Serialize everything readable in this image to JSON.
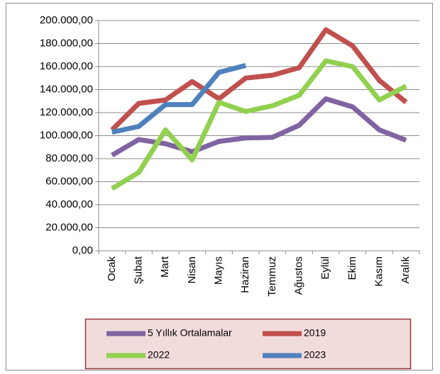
{
  "chart_data": {
    "type": "line",
    "categories": [
      "Ocak",
      "Şubat",
      "Mart",
      "Nisan",
      "Mayıs",
      "Haziran",
      "Temmuz",
      "Ağustos",
      "Eylül",
      "Ekim",
      "Kasım",
      "Aralık"
    ],
    "series": [
      {
        "name": "5 Yıllık Ortalamalar",
        "color": "#8064a2",
        "values": [
          83000,
          96600,
          93000,
          86000,
          95000,
          98000,
          98500,
          109000,
          132000,
          125000,
          105000,
          96000
        ]
      },
      {
        "name": "2019",
        "color": "#c0504d",
        "values": [
          105000,
          128000,
          131000,
          147000,
          132000,
          150000,
          152500,
          159000,
          192000,
          178000,
          148000,
          129000
        ]
      },
      {
        "name": "2022",
        "color": "#92d050",
        "values": [
          54000,
          68000,
          105000,
          79000,
          129000,
          121000,
          126000,
          135000,
          165000,
          160000,
          131000,
          143000
        ]
      },
      {
        "name": "2023",
        "color": "#4f81bd",
        "values": [
          103000,
          108000,
          127000,
          127000,
          155000,
          161000,
          null,
          null,
          null,
          null,
          null,
          null
        ]
      }
    ],
    "ylim": [
      0,
      200000
    ],
    "yticks": [
      {
        "value": 0,
        "label": "0,00"
      },
      {
        "value": 20000,
        "label": "20.000,00"
      },
      {
        "value": 40000,
        "label": "40.000,00"
      },
      {
        "value": 60000,
        "label": "60.000,00"
      },
      {
        "value": 80000,
        "label": "80.000,00"
      },
      {
        "value": 100000,
        "label": "100.000,00"
      },
      {
        "value": 120000,
        "label": "120.000,00"
      },
      {
        "value": 140000,
        "label": "140.000,00"
      },
      {
        "value": 160000,
        "label": "160.000,00"
      },
      {
        "value": 180000,
        "label": "180.000,00"
      },
      {
        "value": 200000,
        "label": "200.000,00"
      }
    ],
    "grid": true,
    "legend": "bottom"
  }
}
